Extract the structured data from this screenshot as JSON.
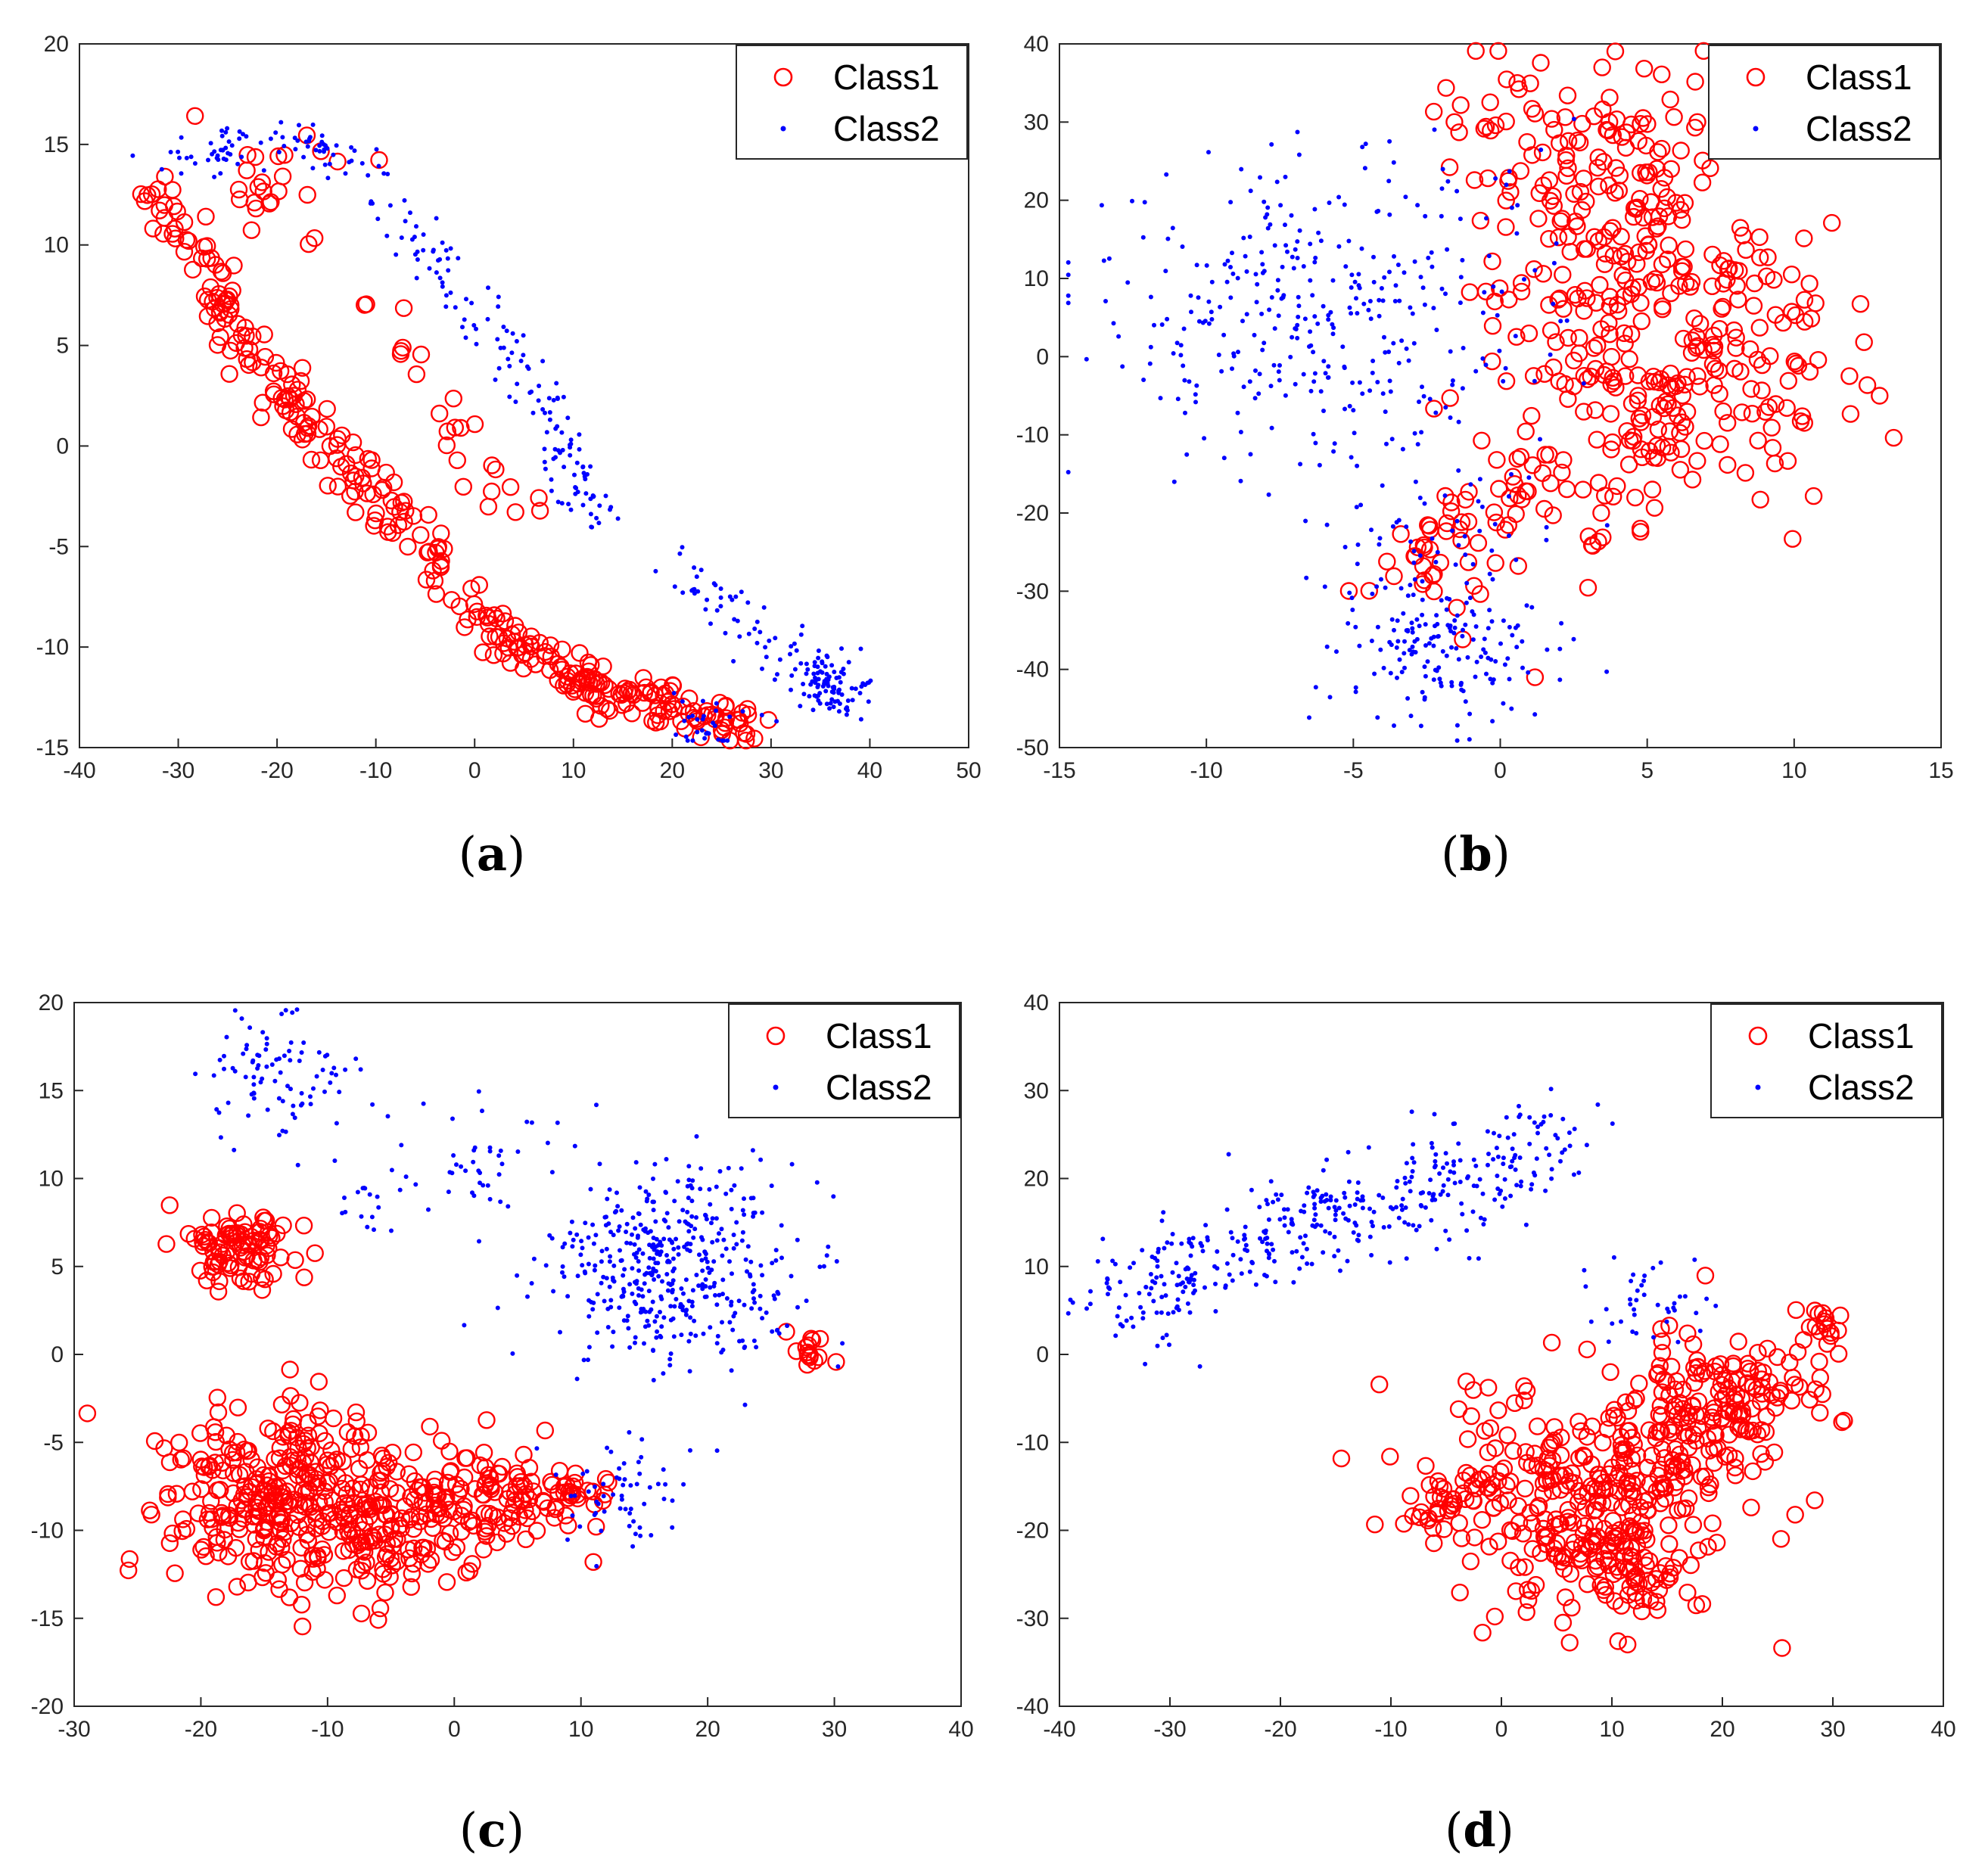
{
  "colors": {
    "class1": "#ff0000",
    "class2": "#0000ff",
    "axis": "#262626"
  },
  "chart_data": [
    {
      "id": "a",
      "type": "scatter",
      "caption": "(a)",
      "xlim": [
        -40,
        50
      ],
      "ylim": [
        -15,
        20
      ],
      "xticks": [
        -40,
        -30,
        -20,
        -10,
        0,
        10,
        20,
        30,
        40,
        50
      ],
      "yticks": [
        -15,
        -10,
        -5,
        0,
        5,
        10,
        15,
        20
      ],
      "grid": false,
      "legend_position": "top-right",
      "series": [
        {
          "name": "Class1",
          "marker": "circle",
          "clusters": [
            {
              "path": [
                [
                  -33,
                  13.5
                ],
                [
                  -30,
                  11
                ],
                [
                  -27,
                  8
                ],
                [
                  -24,
                  6
                ],
                [
                  -21,
                  4
                ],
                [
                  -19,
                  2
                ],
                [
                  -16,
                  0.5
                ],
                [
                  -13,
                  -1
                ],
                [
                  -10,
                  -2.5
                ],
                [
                  -7,
                  -4
                ],
                [
                  -4,
                  -6
                ],
                [
                  -1,
                  -8
                ],
                [
                  2,
                  -9
                ],
                [
                  5,
                  -10
                ],
                [
                  8,
                  -11
                ],
                [
                  11,
                  -12
                ],
                [
                  14,
                  -12.5
                ],
                [
                  18,
                  -12.5
                ],
                [
                  21,
                  -13
                ],
                [
                  24,
                  -13.5
                ],
                [
                  27,
                  -14
                ]
              ],
              "spread": 1.4,
              "count": 330
            },
            {
              "path": [
                [
                  -12,
                  8
                ],
                [
                  -8,
                  5
                ],
                [
                  -4,
                  2
                ],
                [
                  0,
                  0
                ],
                [
                  2,
                  -2
                ],
                [
                  6,
                  -3
                ]
              ],
              "spread": 1.6,
              "count": 25
            },
            {
              "center": [
                -20,
                13
              ],
              "spread": 4,
              "count": 25
            }
          ]
        },
        {
          "name": "Class2",
          "marker": "dot",
          "clusters": [
            {
              "path": [
                [
                  -30,
                  14
                ],
                [
                  -25,
                  15
                ],
                [
                  -18,
                  15.5
                ],
                [
                  -12,
                  14
                ],
                [
                  -7,
                  11
                ],
                [
                  -2,
                  8
                ],
                [
                  3,
                  5
                ],
                [
                  7,
                  2
                ],
                [
                  10,
                  -1
                ],
                [
                  12,
                  -3.5
                ]
              ],
              "spread": 1.5,
              "count": 230
            },
            {
              "center": [
                36,
                -12
              ],
              "spread": 2,
              "count": 90
            },
            {
              "path": [
                [
                  21,
                  -6
                ],
                [
                  25,
                  -8
                ],
                [
                  30,
                  -10
                ],
                [
                  35,
                  -11
                ]
              ],
              "spread": 1.5,
              "count": 60
            },
            {
              "center": [
                23,
                -13.5
              ],
              "spread": 2,
              "count": 30
            }
          ]
        }
      ]
    },
    {
      "id": "b",
      "type": "scatter",
      "caption": "(b)",
      "xlim": [
        -15,
        15
      ],
      "ylim": [
        -50,
        40
      ],
      "xticks": [
        -15,
        -10,
        -5,
        0,
        5,
        10,
        15
      ],
      "yticks": [
        -50,
        -40,
        -30,
        -20,
        -10,
        0,
        10,
        20,
        30,
        40
      ],
      "grid": false,
      "legend_position": "top-right",
      "series": [
        {
          "name": "Class1",
          "marker": "circle",
          "clusters": [
            {
              "center": [
                4,
                25
              ],
              "spread": 2.4,
              "count": 120
            },
            {
              "center": [
                4,
                8
              ],
              "spread": 2.5,
              "count": 100
            },
            {
              "center": [
                4,
                -8
              ],
              "spread": 2.5,
              "count": 120
            },
            {
              "path": [
                [
                  6,
                  12
                ],
                [
                  8,
                  12
                ],
                [
                  10,
                  10
                ]
              ],
              "spread": 1.5,
              "count": 30
            },
            {
              "path": [
                [
                  6,
                  0
                ],
                [
                  9,
                  1
                ],
                [
                  11,
                  0
                ]
              ],
              "spread": 1.5,
              "count": 30
            },
            {
              "path": [
                [
                  6,
                  -7
                ],
                [
                  9,
                  -7
                ],
                [
                  10,
                  -8
                ]
              ],
              "spread": 1.5,
              "count": 30
            },
            {
              "path": [
                [
                  2,
                  -15
                ],
                [
                  0,
                  -20
                ],
                [
                  -2,
                  -25
                ],
                [
                  -3,
                  -28
                ]
              ],
              "spread": 1.3,
              "count": 60
            },
            {
              "center": [
                0,
                33
              ],
              "spread": 1.2,
              "count": 10
            }
          ]
        },
        {
          "name": "Class2",
          "marker": "dot",
          "clusters": [
            {
              "center": [
                -6.5,
                5
              ],
              "spread": 3.4,
              "count": 330
            },
            {
              "center": [
                -2,
                -38
              ],
              "spread": 1.8,
              "count": 160
            },
            {
              "center": [
                -2,
                -25
              ],
              "spread": 2,
              "count": 60
            },
            {
              "path": [
                [
                  -2,
                  25
                ],
                [
                  -1,
                  15
                ],
                [
                  0,
                  5
                ],
                [
                  1,
                  -5
                ]
              ],
              "spread": 1.5,
              "count": 25
            }
          ]
        }
      ]
    },
    {
      "id": "c",
      "type": "scatter",
      "caption": "(c)",
      "xlim": [
        -30,
        40
      ],
      "ylim": [
        -20,
        20
      ],
      "xticks": [
        -30,
        -20,
        -10,
        0,
        10,
        20,
        30,
        40
      ],
      "yticks": [
        -20,
        -15,
        -10,
        -5,
        0,
        5,
        10,
        15,
        20
      ],
      "grid": false,
      "legend_position": "top-right",
      "series": [
        {
          "name": "Class1",
          "marker": "circle",
          "clusters": [
            {
              "center": [
                -14,
                -8
              ],
              "spread": 4.6,
              "count": 300
            },
            {
              "center": [
                -17,
                6
              ],
              "spread": 2.2,
              "count": 90
            },
            {
              "center": [
                -5,
                -10
              ],
              "spread": 3.2,
              "count": 120
            },
            {
              "center": [
                3,
                -8
              ],
              "spread": 2.6,
              "count": 90
            },
            {
              "center": [
                9,
                -8
              ],
              "spread": 2,
              "count": 30
            },
            {
              "center": [
                28,
                0
              ],
              "spread": 1,
              "count": 15
            }
          ]
        },
        {
          "name": "Class2",
          "marker": "dot",
          "clusters": [
            {
              "center": [
                17,
                5
              ],
              "spread": 5,
              "count": 450
            },
            {
              "center": [
                -14,
                16
              ],
              "spread": 3,
              "count": 90
            },
            {
              "center": [
                2,
                11
              ],
              "spread": 3,
              "count": 40
            },
            {
              "center": [
                13,
                -8
              ],
              "spread": 2.5,
              "count": 60
            },
            {
              "center": [
                -6,
                9
              ],
              "spread": 2,
              "count": 20
            }
          ]
        }
      ]
    },
    {
      "id": "d",
      "type": "scatter",
      "caption": "(d)",
      "xlim": [
        -40,
        40
      ],
      "ylim": [
        -40,
        40
      ],
      "xticks": [
        -40,
        -30,
        -20,
        -10,
        0,
        10,
        20,
        30,
        40
      ],
      "yticks": [
        -40,
        -30,
        -20,
        -10,
        0,
        10,
        20,
        30,
        40
      ],
      "grid": false,
      "legend_position": "top-right",
      "series": [
        {
          "name": "Class1",
          "marker": "circle",
          "clusters": [
            {
              "center": [
                8,
                -17
              ],
              "spread": 6,
              "count": 300
            },
            {
              "center": [
                20,
                -6
              ],
              "spread": 4.5,
              "count": 170
            },
            {
              "center": [
                -5,
                -17
              ],
              "spread": 2.5,
              "count": 40
            },
            {
              "center": [
                12,
                -25
              ],
              "spread": 3,
              "count": 40
            },
            {
              "center": [
                30,
                3
              ],
              "spread": 1.2,
              "count": 15
            }
          ]
        },
        {
          "name": "Class2",
          "marker": "dot",
          "clusters": [
            {
              "path": [
                [
                  -36,
                  5
                ],
                [
                  -30,
                  8
                ],
                [
                  -24,
                  12
                ],
                [
                  -18,
                  15
                ],
                [
                  -12,
                  17
                ],
                [
                  -6,
                  19
                ],
                [
                  0,
                  22
                ],
                [
                  4,
                  25
                ]
              ],
              "spread": 3,
              "count": 420
            },
            {
              "center": [
                13,
                6
              ],
              "spread": 3,
              "count": 40
            }
          ]
        }
      ]
    }
  ]
}
